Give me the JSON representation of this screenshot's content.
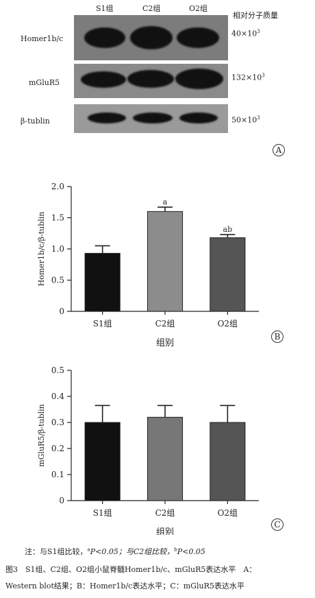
{
  "panel_a": {
    "groups": [
      "S1组",
      "C2组",
      "O2组"
    ],
    "mw_header": "相对分子质量",
    "blots": [
      {
        "label": "Homer1b/c",
        "mw_base": "40×10",
        "mw_exp": "3"
      },
      {
        "label": "mGluR5",
        "mw_base": "132×10",
        "mw_exp": "3"
      },
      {
        "label": "β-tublin",
        "mw_base": "50×10",
        "mw_exp": "3"
      }
    ],
    "letter": "A"
  },
  "chart_data": [
    {
      "type": "bar",
      "panel": "B",
      "categories": [
        "S1组",
        "C2组",
        "O2组"
      ],
      "values": [
        0.93,
        1.6,
        1.18
      ],
      "errors": [
        0.12,
        0.07,
        0.05
      ],
      "annotations": [
        "",
        "a",
        "ab"
      ],
      "colors": [
        "#111111",
        "#8c8c8c",
        "#555555"
      ],
      "ylabel": "Homer1b/c/β-tublin",
      "xlabel": "组别",
      "ylim": [
        0,
        2.0
      ],
      "yticks": [
        "0",
        "0.5",
        "1.0",
        "1.5",
        "2.0"
      ],
      "ytick_values": [
        0,
        0.5,
        1.0,
        1.5,
        2.0
      ]
    },
    {
      "type": "bar",
      "panel": "C",
      "categories": [
        "S1组",
        "C2组",
        "O2组"
      ],
      "values": [
        0.3,
        0.32,
        0.3
      ],
      "errors": [
        0.065,
        0.045,
        0.065
      ],
      "annotations": [
        "",
        "",
        ""
      ],
      "colors": [
        "#111111",
        "#777777",
        "#555555"
      ],
      "ylabel": "mGluR5/β-tublin",
      "xlabel": "组别",
      "ylim": [
        0,
        0.5
      ],
      "yticks": [
        "0",
        "0.1",
        "0.2",
        "0.3",
        "0.4",
        "0.5"
      ],
      "ytick_values": [
        0,
        0.1,
        0.2,
        0.3,
        0.4,
        0.5
      ]
    }
  ],
  "note": {
    "prefix": "注：与S1组比较，",
    "sup_a": "a",
    "p_a": "P<0.05；与C2组比较，",
    "sup_b": "b",
    "p_b": "P<0.05"
  },
  "caption": {
    "line1": "图3　S1组、C2组、O2组小鼠脊髓Homer1b/c、mGluR5表达水平　A：",
    "line2": "Western blot结果；B：Homer1b/c表达水平；C：mGluR5表达水平"
  }
}
